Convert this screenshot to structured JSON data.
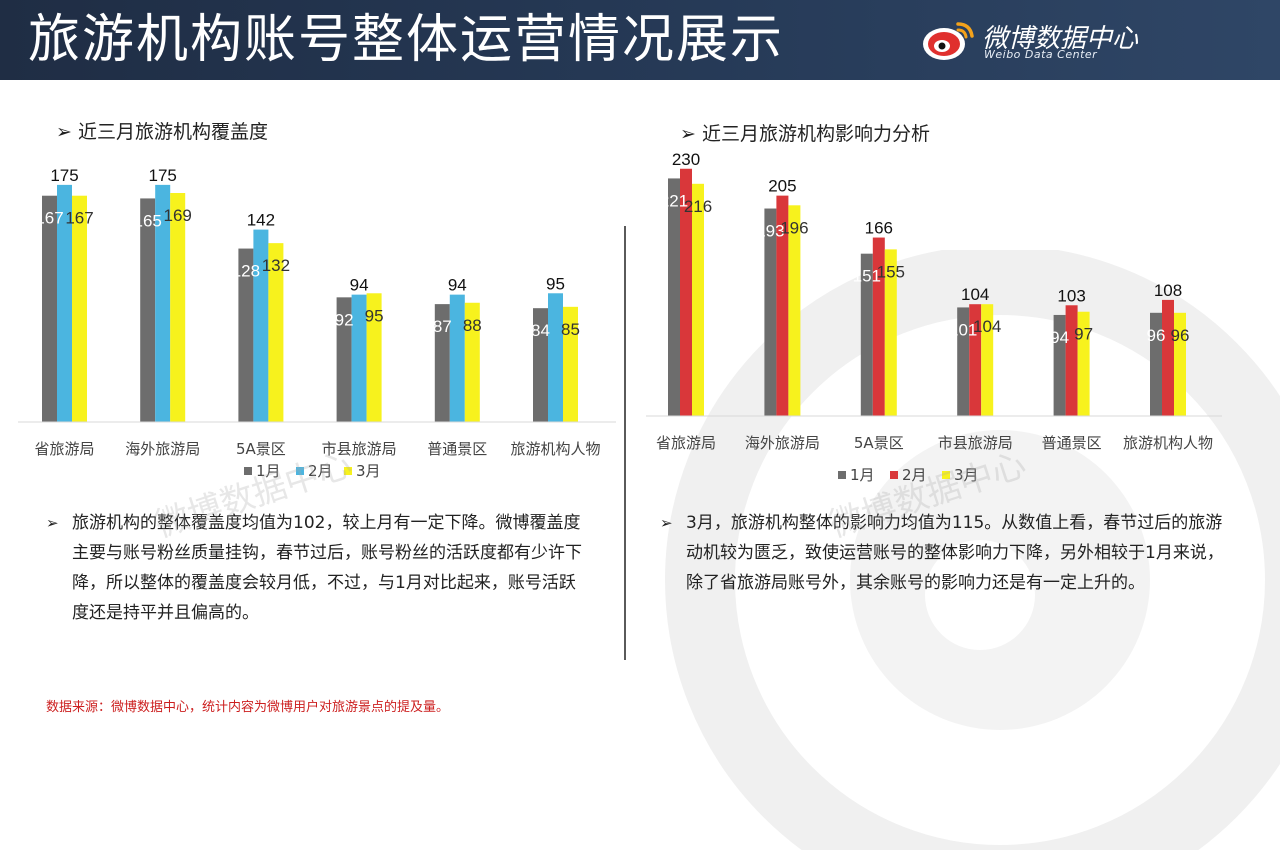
{
  "header": {
    "title": "旅游机构账号整体运营情况展示",
    "logo_name": "微博数据中心",
    "logo_sub": "Weibo Data Center"
  },
  "watermark_text": "微博数据中心",
  "left_section": {
    "heading": "近三月旅游机构覆盖度",
    "paragraph": "旅游机构的整体覆盖度均值为102，较上月有一定下降。微博覆盖度主要与账号粉丝质量挂钩，春节过后，账号粉丝的活跃度都有少许下降，所以整体的覆盖度会较月低，不过，与1月对比起来，账号活跃度还是持平并且偏高的。"
  },
  "right_section": {
    "heading": "近三月旅游机构影响力分析",
    "paragraph": "3月，旅游机构整体的影响力均值为115。从数值上看，春节过后的旅游动机较为匮乏，致使运营账号的整体影响力下降，另外相较于1月来说，除了省旅游局账号外，其余账号的影响力还是有一定上升的。"
  },
  "source": "数据来源：微博数据中心，统计内容为微博用户对旅游景点的提及量。",
  "colors": {
    "jan": "#6d6d6d",
    "feb_left": "#4bb5e0",
    "feb_right": "#d9373a",
    "mar": "#f7f21d",
    "header_bg": "#1f2d44",
    "source_red": "#cc1f1f"
  },
  "chart_data": [
    {
      "type": "bar",
      "categories": [
        "省旅游局",
        "海外旅游局",
        "5A景区",
        "市县旅游局",
        "普通景区",
        "旅游机构人物"
      ],
      "series": [
        {
          "name": "1月",
          "values": [
            167,
            165,
            128,
            92,
            87,
            84
          ]
        },
        {
          "name": "2月",
          "values": [
            175,
            175,
            142,
            94,
            94,
            95
          ]
        },
        {
          "name": "3月",
          "values": [
            167,
            169,
            132,
            95,
            88,
            85
          ]
        }
      ],
      "ylim": [
        0,
        190
      ],
      "legend": "bottom",
      "grid": false
    },
    {
      "type": "bar",
      "categories": [
        "省旅游局",
        "海外旅游局",
        "5A景区",
        "市县旅游局",
        "普通景区",
        "旅游机构人物"
      ],
      "series": [
        {
          "name": "1月",
          "values": [
            221,
            193,
            151,
            101,
            94,
            96
          ]
        },
        {
          "name": "2月",
          "values": [
            230,
            205,
            166,
            104,
            103,
            108
          ]
        },
        {
          "name": "3月",
          "values": [
            216,
            196,
            155,
            104,
            97,
            96
          ]
        }
      ],
      "ylim": [
        0,
        240
      ],
      "legend": "bottom",
      "grid": false
    }
  ]
}
